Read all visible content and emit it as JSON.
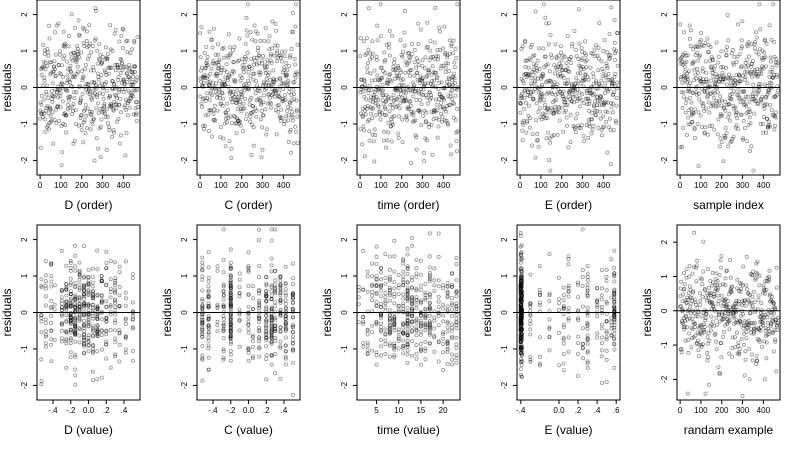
{
  "chart_data": [
    {
      "type": "scatter",
      "xlabel": "D (order)",
      "ylabel": "residuals",
      "xlim": [
        -15,
        480
      ],
      "ylim": [
        -2.4,
        2.4
      ],
      "xticks": [
        0,
        100,
        200,
        300,
        400
      ],
      "yticks": [
        -2,
        -1,
        0,
        1,
        2
      ],
      "hline": 0,
      "points": {
        "mode": "order",
        "n": 470,
        "seed": 11
      }
    },
    {
      "type": "scatter",
      "xlabel": "C (order)",
      "ylabel": "residuals",
      "xlim": [
        -15,
        480
      ],
      "ylim": [
        -2.4,
        2.4
      ],
      "xticks": [
        0,
        100,
        200,
        300,
        400
      ],
      "yticks": [
        -2,
        -1,
        0,
        1,
        2
      ],
      "hline": 0,
      "points": {
        "mode": "order",
        "n": 470,
        "seed": 23
      }
    },
    {
      "type": "scatter",
      "xlabel": "time (order)",
      "ylabel": "residuals",
      "xlim": [
        -15,
        480
      ],
      "ylim": [
        -2.4,
        2.4
      ],
      "xticks": [
        0,
        100,
        200,
        300,
        400
      ],
      "yticks": [
        -2,
        -1,
        0,
        1,
        2
      ],
      "hline": 0,
      "points": {
        "mode": "order",
        "n": 470,
        "seed": 37
      }
    },
    {
      "type": "scatter",
      "xlabel": "E (order)",
      "ylabel": "residuals",
      "xlim": [
        -15,
        480
      ],
      "ylim": [
        -2.4,
        2.4
      ],
      "xticks": [
        0,
        100,
        200,
        300,
        400
      ],
      "yticks": [
        -2,
        -1,
        0,
        1,
        2
      ],
      "hline": 0,
      "points": {
        "mode": "order",
        "n": 470,
        "seed": 41
      }
    },
    {
      "type": "scatter",
      "xlabel": "sample index",
      "ylabel": "residuals",
      "xlim": [
        -15,
        480
      ],
      "ylim": [
        -2.4,
        2.4
      ],
      "xticks": [
        0,
        100,
        200,
        300,
        400
      ],
      "yticks": [
        -2,
        -1,
        0,
        1,
        2
      ],
      "hline": 0,
      "points": {
        "mode": "order",
        "n": 470,
        "seed": 53
      }
    },
    {
      "type": "scatter",
      "xlabel": "D (value)",
      "ylabel": "residuals",
      "xlim": [
        -0.58,
        0.58
      ],
      "ylim": [
        -2.4,
        2.4
      ],
      "xticks": [
        -0.4,
        -0.2,
        0.0,
        0.2,
        0.4
      ],
      "yticks": [
        -2,
        -1,
        0,
        1,
        2
      ],
      "hline": 0,
      "points": {
        "mode": "levels",
        "n": 470,
        "seed": 61,
        "levels": [
          -0.53,
          -0.48,
          -0.42,
          -0.38,
          -0.3,
          -0.25,
          -0.2,
          -0.15,
          -0.1,
          -0.05,
          0,
          0.05,
          0.1,
          0.15,
          0.2,
          0.25,
          0.3,
          0.35,
          0.42,
          0.5
        ],
        "weights": [
          1,
          1,
          1,
          1,
          2,
          2,
          3,
          4,
          3,
          3,
          4,
          3,
          3,
          2,
          2,
          1,
          2,
          1,
          1,
          1
        ]
      }
    },
    {
      "type": "scatter",
      "xlabel": "C (value)",
      "ylabel": "residuals",
      "xlim": [
        -0.58,
        0.58
      ],
      "ylim": [
        -2.4,
        2.4
      ],
      "xticks": [
        -0.4,
        -0.2,
        0.0,
        0.2,
        0.4
      ],
      "yticks": [
        -2,
        -1,
        0,
        1,
        2
      ],
      "hline": 0,
      "points": {
        "mode": "levels",
        "n": 470,
        "seed": 71,
        "levels": [
          -0.52,
          -0.45,
          -0.35,
          -0.28,
          -0.2,
          -0.1,
          0,
          0.05,
          0.12,
          0.2,
          0.26,
          0.3,
          0.36,
          0.42,
          0.5
        ],
        "weights": [
          3,
          3,
          1,
          2,
          4,
          1,
          2,
          1,
          2,
          3,
          4,
          2,
          2,
          3,
          3
        ]
      }
    },
    {
      "type": "scatter",
      "xlabel": "time (value)",
      "ylabel": "residuals",
      "xlim": [
        0.6,
        23.8
      ],
      "ylim": [
        -2.4,
        2.4
      ],
      "xticks": [
        5,
        10,
        15,
        20
      ],
      "yticks": [
        -2,
        -1,
        0,
        1,
        2
      ],
      "hline": 0,
      "points": {
        "mode": "levels",
        "n": 470,
        "seed": 83,
        "levels": [
          1,
          2,
          3,
          4,
          5,
          6,
          7,
          8,
          9,
          10,
          11,
          12,
          13,
          14,
          15,
          16,
          17,
          18,
          19,
          20,
          21,
          22,
          23
        ],
        "weights": [
          1,
          2,
          2,
          2,
          3,
          3,
          3,
          4,
          4,
          3,
          4,
          5,
          4,
          3,
          3,
          3,
          3,
          2,
          2,
          2,
          3,
          2,
          3
        ]
      }
    },
    {
      "type": "scatter",
      "xlabel": "E (value)",
      "ylabel": "residuals",
      "xlim": [
        -0.44,
        0.64
      ],
      "ylim": [
        -2.4,
        2.4
      ],
      "xticks": [
        -0.4,
        0.0,
        0.2,
        0.4,
        0.6
      ],
      "yticks": [
        -2,
        -1,
        0,
        1,
        2
      ],
      "hline": 0,
      "points": {
        "mode": "levels",
        "n": 470,
        "seed": 97,
        "levels": [
          -0.4,
          -0.39,
          -0.3,
          -0.2,
          -0.1,
          0,
          0.05,
          0.1,
          0.2,
          0.25,
          0.3,
          0.4,
          0.45,
          0.5,
          0.55,
          0.58
        ],
        "weights": [
          14,
          8,
          1,
          1,
          1,
          1,
          1,
          1,
          1,
          1,
          2,
          1,
          1,
          1,
          1,
          4
        ]
      }
    },
    {
      "type": "scatter",
      "xlabel": "randam example",
      "ylabel": "residuals",
      "xlim": [
        -15,
        480
      ],
      "ylim": [
        -2.6,
        2.5
      ],
      "xticks": [
        0,
        100,
        200,
        300,
        400
      ],
      "yticks": [
        -2,
        -1,
        0,
        1,
        2
      ],
      "hline": 0,
      "points": {
        "mode": "order",
        "n": 470,
        "seed": 109
      }
    }
  ]
}
